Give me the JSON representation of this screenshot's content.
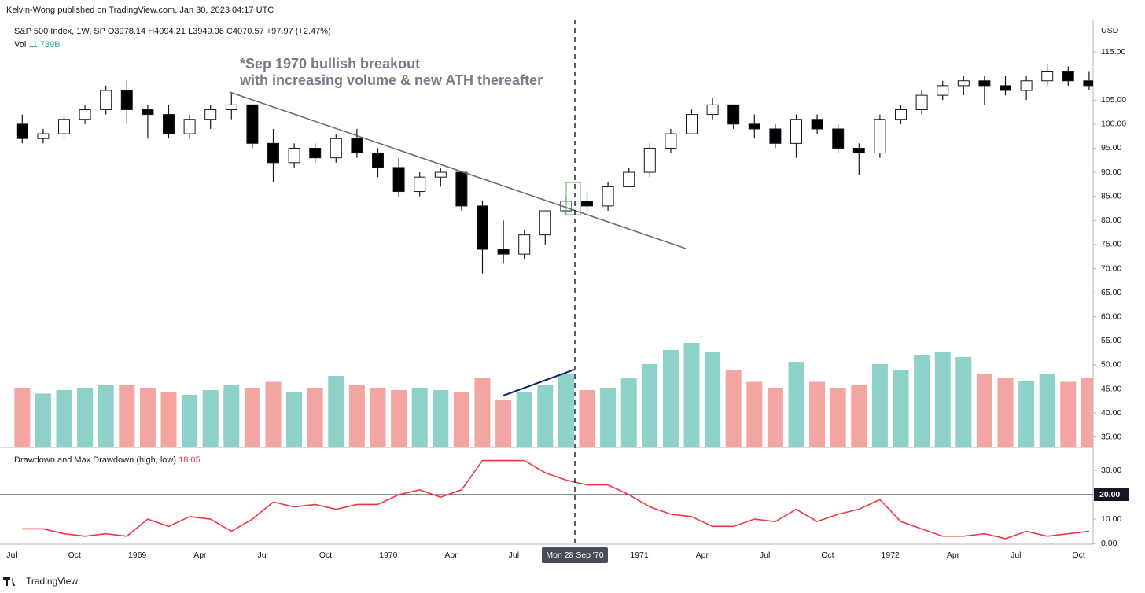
{
  "header": {
    "publisher": "Kelvin-Wong published on TradingView.com, Jan 30, 2023 04:17 UTC",
    "footer": "TradingView"
  },
  "chart_data": [
    {
      "type": "candlestick",
      "title": "S&P 500 Index, 1W, SP",
      "ohlc_legend": [
        "O3978.14",
        "H4094.21",
        "L3949.06",
        "C4070.57"
      ],
      "change": "+97.97 (+2.47%)",
      "volume_label": "Vol",
      "volume_value": "11.789B",
      "annotation": [
        "*Sep 1970 bullish breakout",
        "with increasing volume & new ATH thereafter"
      ],
      "y_axis_unit": "USD",
      "crosshair_label": "Mon 28 Sep '70",
      "categories": [
        "Jul",
        null,
        null,
        "Oct",
        null,
        null,
        "1969",
        null,
        null,
        "Apr",
        null,
        null,
        "Jul",
        null,
        null,
        "Oct",
        null,
        null,
        "1970",
        null,
        null,
        "Apr",
        null,
        null,
        "Jul",
        null,
        null,
        null,
        null,
        null,
        "1971",
        null,
        null,
        "Apr",
        null,
        null,
        "Jul",
        null,
        null,
        "Oct",
        null,
        null,
        "1972",
        null,
        null,
        "Apr",
        null,
        null,
        "Jul",
        null,
        null,
        "Oct"
      ],
      "open": [
        100,
        97,
        98,
        101,
        103,
        107,
        103,
        102,
        98,
        101,
        103,
        104,
        96,
        92,
        95,
        93,
        97,
        94,
        91,
        86,
        89,
        90,
        83,
        74,
        73,
        77,
        82,
        84,
        83,
        87,
        90,
        95,
        98,
        102,
        104,
        100,
        99,
        96,
        101,
        99,
        95,
        94,
        101,
        103,
        106,
        108,
        109,
        108,
        107,
        109,
        111,
        109
      ],
      "high": [
        102,
        99,
        102,
        104,
        108,
        109,
        104,
        104,
        102,
        104,
        106.5,
        104,
        99,
        96,
        96,
        98,
        99,
        95,
        93,
        90,
        91,
        90,
        84,
        80,
        78,
        82,
        85,
        86,
        88,
        91,
        96,
        99,
        103,
        105.5,
        104,
        102,
        100,
        102,
        102,
        100,
        96,
        102,
        104,
        107,
        109,
        110,
        110,
        110,
        110,
        112.5,
        112,
        111
      ],
      "low": [
        96,
        96,
        97,
        100,
        102,
        100,
        97,
        97,
        97,
        99,
        101,
        95,
        88,
        91,
        92,
        92,
        93,
        89,
        85,
        85,
        87,
        82,
        69,
        71,
        72,
        75,
        81,
        82,
        82,
        87,
        89,
        94,
        98,
        101,
        99,
        97,
        95,
        93,
        98,
        94,
        89.5,
        93,
        100,
        102,
        105,
        106,
        104,
        106,
        105,
        108,
        108,
        107
      ],
      "close": [
        97,
        98,
        101,
        103,
        107,
        103,
        102,
        98,
        101,
        103,
        104,
        96,
        92,
        95,
        93,
        97,
        94,
        91,
        86,
        89,
        90,
        83,
        74,
        73,
        77,
        82,
        84,
        83,
        87,
        90,
        95,
        98,
        102,
        104,
        100,
        99,
        96,
        101,
        99,
        95,
        94,
        101,
        103,
        106,
        108,
        109,
        108,
        107,
        109,
        111,
        109,
        108
      ],
      "volume": [
        50,
        45,
        48,
        50,
        52,
        52,
        50,
        46,
        44,
        48,
        52,
        50,
        55,
        46,
        50,
        60,
        52,
        50,
        48,
        50,
        48,
        46,
        58,
        40,
        46,
        52,
        62,
        48,
        50,
        58,
        70,
        82,
        88,
        80,
        65,
        55,
        50,
        72,
        55,
        50,
        52,
        70,
        65,
        78,
        80,
        76,
        62,
        58,
        56,
        62,
        55,
        58
      ],
      "volume_lim": [
        0,
        100
      ],
      "ylim": [
        33,
        121.7
      ],
      "yticks": [
        {
          "value": 115,
          "label": "115.00"
        },
        {
          "value": 105,
          "label": "105.00"
        },
        {
          "value": 100,
          "label": "100.00"
        },
        {
          "value": 95,
          "label": "95.00"
        },
        {
          "value": 90,
          "label": "90.00"
        },
        {
          "value": 85,
          "label": "85.00"
        },
        {
          "value": 80,
          "label": "80.00"
        },
        {
          "value": 75,
          "label": "75.00"
        },
        {
          "value": 70,
          "label": "70.00"
        },
        {
          "value": 65,
          "label": "65.00"
        },
        {
          "value": 60,
          "label": "60.00"
        },
        {
          "value": 55,
          "label": "55.00"
        },
        {
          "value": 50,
          "label": "50.00"
        },
        {
          "value": 45,
          "label": "45.00"
        },
        {
          "value": 40,
          "label": "40.00"
        },
        {
          "value": 35,
          "label": "35.00"
        }
      ],
      "candle_up": "#ffffff",
      "candle_down": "#000000",
      "volume_up": "#8ed1c9",
      "volume_down": "#f3a5a2"
    },
    {
      "type": "line",
      "title": "Drawdown and Max Drawdown (high, low)",
      "last_value": "18.05",
      "color": "#f23645",
      "values": [
        6,
        6,
        4,
        3,
        4,
        3,
        10,
        7,
        11,
        10,
        5,
        10,
        17,
        15,
        16,
        14,
        16,
        16,
        20,
        22,
        19,
        22,
        34,
        34,
        34,
        29,
        26,
        24,
        24,
        20,
        15,
        12,
        11,
        7,
        7,
        10,
        9,
        14,
        9,
        12,
        14,
        18,
        9,
        6,
        3,
        3,
        4,
        2,
        5,
        3,
        4,
        5
      ],
      "ylim": [
        -0.3,
        38.7
      ],
      "yticks": [
        {
          "value": 0,
          "label": "0.00"
        },
        {
          "value": 10,
          "label": "10.00"
        },
        {
          "value": 30,
          "label": "30.00"
        }
      ],
      "hline": {
        "value": 20,
        "label": "20.00"
      }
    }
  ]
}
